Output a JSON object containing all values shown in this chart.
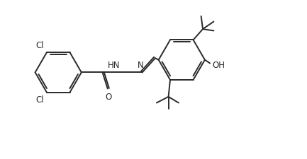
{
  "background_color": "#ffffff",
  "line_color": "#2a2a2a",
  "line_width": 1.4,
  "font_size": 8.5,
  "figsize": [
    4.33,
    2.26
  ],
  "dpi": 100,
  "xlim": [
    0.0,
    9.0
  ],
  "ylim": [
    0.5,
    5.0
  ]
}
